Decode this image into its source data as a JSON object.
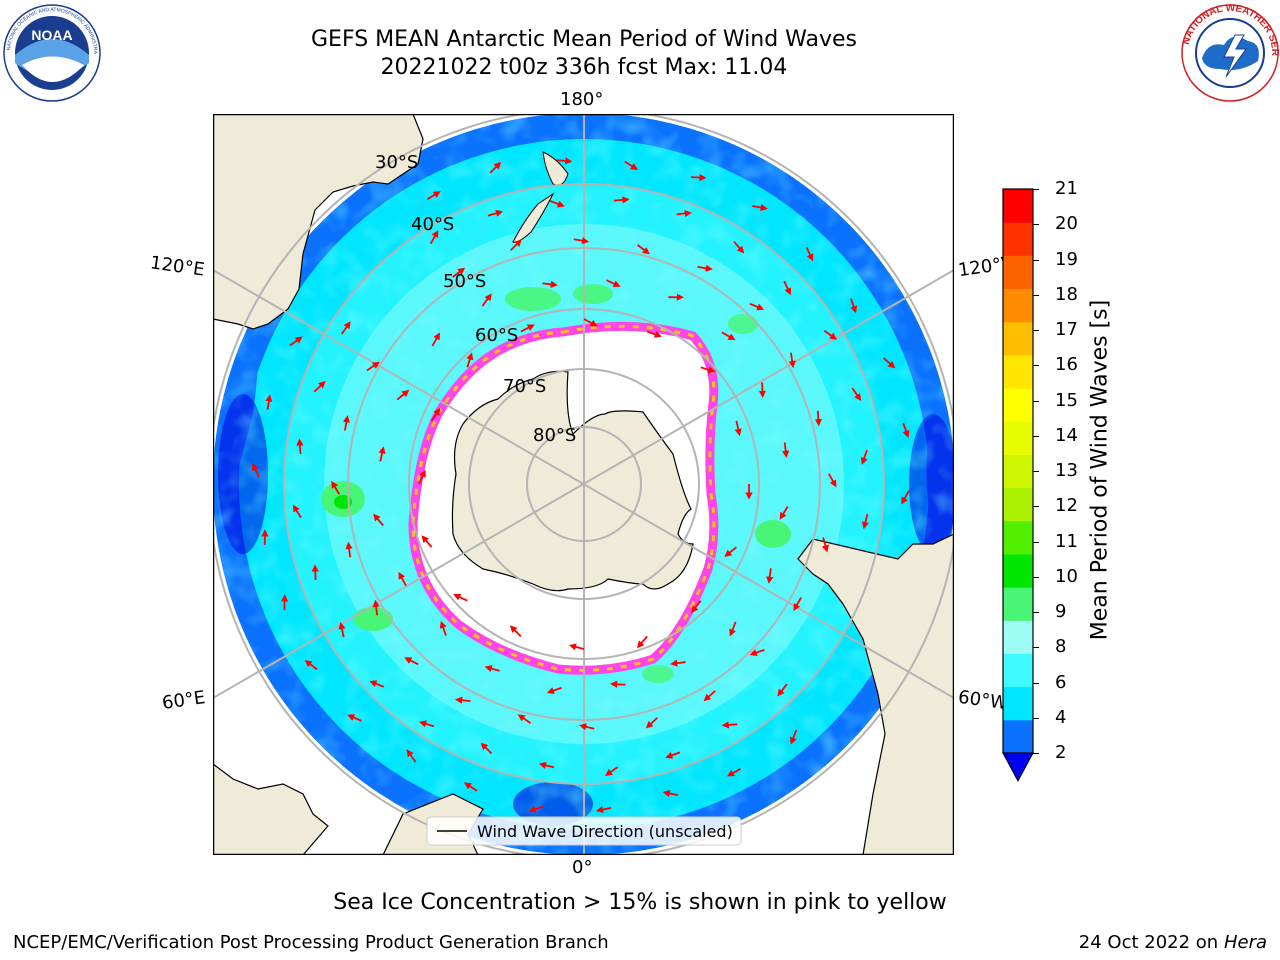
{
  "header": {
    "title": "GEFS MEAN Antarctic Mean Period of Wind Waves",
    "subtitle": "20221022 t00z 336h fcst   Max: 11.04"
  },
  "logos": {
    "left": {
      "name": "NOAA",
      "ring_text": "NATIONAL OCEANIC AND ATMOSPHERIC ADMINISTRATION · U.S. DEPARTMENT OF COMMERCE"
    },
    "right": {
      "name": "National Weather Service",
      "ring_text": "NATIONAL WEATHER SERVICE"
    }
  },
  "map": {
    "projection": "south-polar-stereographic",
    "lon_labels": {
      "top": "180°",
      "bottom": "0°",
      "upper_left": "120°E",
      "lower_left": "60°E",
      "upper_right": "120°W",
      "lower_right": "60°W"
    },
    "lat_labels": [
      "30°S",
      "40°S",
      "50°S",
      "60°S",
      "70°S",
      "80°S"
    ],
    "legend": "Wind Wave Direction (unscaled)",
    "colors": {
      "land": "#efebd8",
      "ice_edge_pink": "#ff44e8",
      "ice_edge_yellow": "#ffc020",
      "arrow": "#ff0000",
      "grid": "#b4b4b4"
    }
  },
  "colorbar": {
    "label": "Mean Period of Wind Waves [s]",
    "ticks": [
      "2",
      "4",
      "6",
      "8",
      "9",
      "10",
      "11",
      "12",
      "13",
      "14",
      "15",
      "16",
      "17",
      "18",
      "19",
      "20",
      "21"
    ],
    "colors": [
      "#0a72ff",
      "#00e6ff",
      "#3ffbff",
      "#9dfdf6",
      "#48f577",
      "#00e600",
      "#52f000",
      "#aaf000",
      "#cdf600",
      "#e8fc00",
      "#ffff00",
      "#ffe600",
      "#ffbd00",
      "#ff8c00",
      "#ff6300",
      "#ff3300",
      "#ff0000"
    ],
    "under_color": "#0000f0"
  },
  "footer": {
    "sea_ice_note": "Sea Ice Concentration > 15% is shown in pink to yellow",
    "left": "NCEP/EMC/Verification Post Processing Product Generation Branch",
    "right_prefix": "24 Oct 2022 on",
    "right_host": "Hera"
  }
}
